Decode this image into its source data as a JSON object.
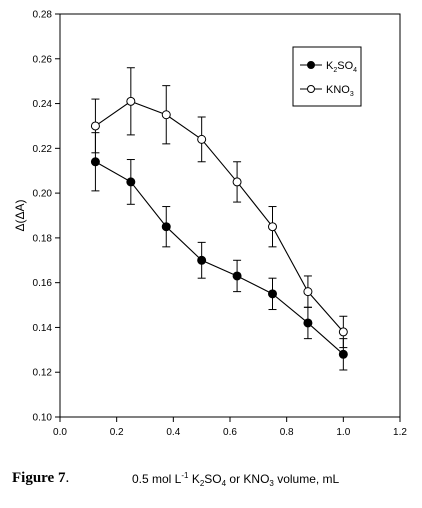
{
  "chart_data": {
    "type": "line",
    "xlim": [
      0.0,
      1.2
    ],
    "ylim": [
      0.1,
      0.28
    ],
    "xticks": [
      "0.0",
      "0.2",
      "0.4",
      "0.6",
      "0.8",
      "1.0",
      "1.2"
    ],
    "yticks": [
      "0.10",
      "0.12",
      "0.14",
      "0.16",
      "0.18",
      "0.20",
      "0.22",
      "0.24",
      "0.26",
      "0.28"
    ],
    "ylabel": "Δ(ΔA)",
    "legend_position": "top-right",
    "grid": false,
    "series": [
      {
        "name_parts": [
          "K",
          "2",
          "SO",
          "4"
        ],
        "marker": "filled-circle",
        "x": [
          0.125,
          0.25,
          0.375,
          0.5,
          0.625,
          0.75,
          0.875,
          1.0
        ],
        "y": [
          0.214,
          0.205,
          0.185,
          0.17,
          0.163,
          0.155,
          0.142,
          0.128
        ],
        "err": [
          0.013,
          0.01,
          0.009,
          0.008,
          0.007,
          0.007,
          0.007,
          0.007
        ]
      },
      {
        "name_parts": [
          "KNO",
          "3"
        ],
        "marker": "open-circle",
        "x": [
          0.125,
          0.25,
          0.375,
          0.5,
          0.625,
          0.75,
          0.875,
          1.0
        ],
        "y": [
          0.23,
          0.241,
          0.235,
          0.224,
          0.205,
          0.185,
          0.156,
          0.138
        ],
        "err": [
          0.012,
          0.015,
          0.013,
          0.01,
          0.009,
          0.009,
          0.007,
          0.007
        ]
      }
    ]
  },
  "caption": {
    "label": "Figure 7",
    "label_suffix": ".",
    "xlabel_parts": [
      "0.5 mol L",
      "-1",
      " K",
      "2",
      "SO",
      "4",
      " or KNO",
      "3",
      " volume, mL"
    ]
  }
}
